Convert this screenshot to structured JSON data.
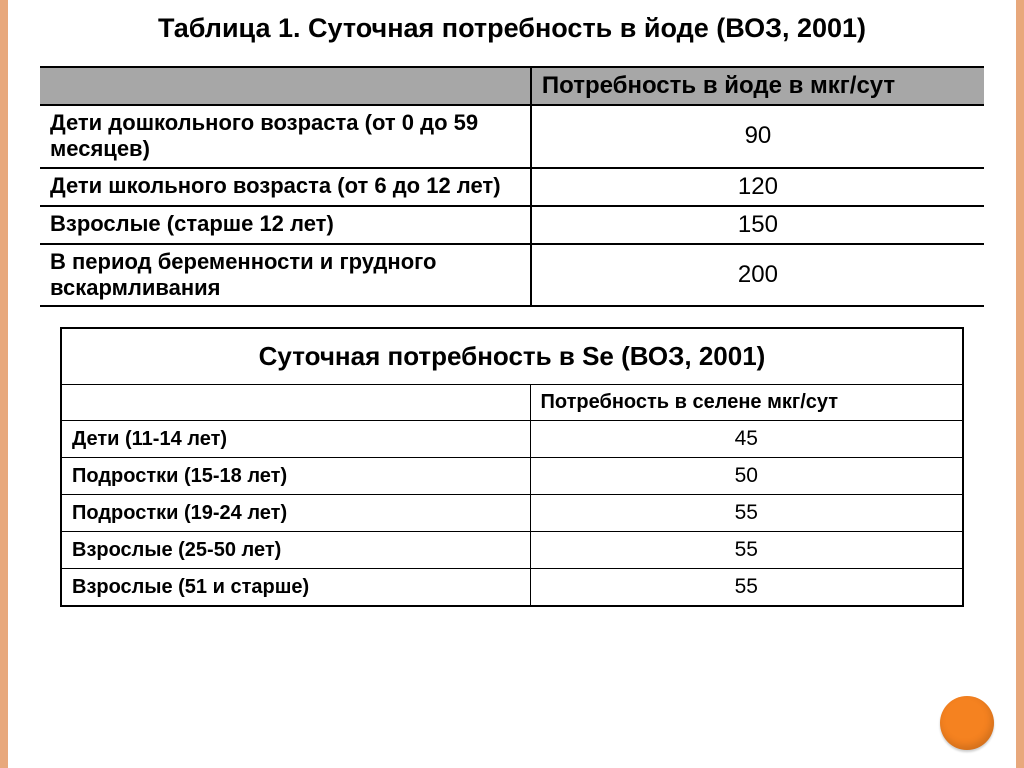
{
  "colors": {
    "border": "#e8a87c",
    "dot": "#f58220",
    "header_bg": "#a7a7a7",
    "line": "#000000",
    "bg": "#ffffff"
  },
  "table1": {
    "title": "Таблица 1. Суточная потребность в йоде (ВОЗ, 2001)",
    "header_value": "Потребность в йоде в мкг/сут",
    "rows": [
      {
        "label": "Дети дошкольного возраста (от 0 до 59 месяцев)",
        "value": "90"
      },
      {
        "label": "Дети школьного возраста (от 6 до 12 лет)",
        "value": "120"
      },
      {
        "label": "Взрослые (старше 12 лет)",
        "value": "150"
      },
      {
        "label": "В период беременности и грудного вскармливания",
        "value": "200"
      }
    ]
  },
  "table2": {
    "title": "Суточная потребность в Se (ВОЗ, 2001)",
    "header_value": "Потребность в селене мкг/сут",
    "rows": [
      {
        "label": "Дети (11-14 лет)",
        "value": "45"
      },
      {
        "label": "Подростки (15-18 лет)",
        "value": "50"
      },
      {
        "label": "Подростки (19-24 лет)",
        "value": "55"
      },
      {
        "label": "Взрослые (25-50 лет)",
        "value": "55"
      },
      {
        "label": "Взрослые (51 и старше)",
        "value": "55"
      }
    ]
  }
}
